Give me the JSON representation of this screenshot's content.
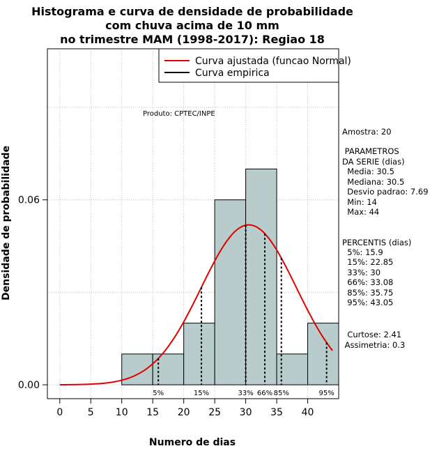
{
  "chart_data": {
    "type": "histogram",
    "title": [
      "Histograma e curva de densidade de probabilidade",
      "com chuva acima de 10 mm",
      "no trimestre MAM (1998-2017): Regiao 18"
    ],
    "xlabel": "Numero de dias",
    "ylabel": "Densidade de probabilidade",
    "xlim": [
      -2,
      45
    ],
    "ylim": [
      -0.0045,
      0.109
    ],
    "x_ticks": [
      0,
      5,
      10,
      15,
      20,
      25,
      30,
      35,
      40
    ],
    "y_ticks": [
      0.0,
      0.06
    ],
    "y_tick_labels": [
      "0.00",
      "0.06"
    ],
    "grid": true,
    "bins": [
      {
        "x0": 10,
        "x1": 15,
        "density": 0.01
      },
      {
        "x0": 15,
        "x1": 20,
        "density": 0.01
      },
      {
        "x0": 20,
        "x1": 25,
        "density": 0.02
      },
      {
        "x0": 25,
        "x1": 30,
        "density": 0.06
      },
      {
        "x0": 30,
        "x1": 35,
        "density": 0.07
      },
      {
        "x0": 35,
        "x1": 40,
        "density": 0.01
      },
      {
        "x0": 40,
        "x1": 45,
        "density": 0.02
      }
    ],
    "fit": {
      "name": "Curva ajustada (funcao Normal)",
      "mean": 30.5,
      "sd": 7.69,
      "x_range": [
        0,
        44
      ],
      "color": "#e00000"
    },
    "empirical": {
      "name": "Curva empirica",
      "color": "#000000"
    },
    "percentile_markers": [
      {
        "label": "5%",
        "x": 15.9
      },
      {
        "label": "15%",
        "x": 22.85
      },
      {
        "label": "33%",
        "x": 30
      },
      {
        "label": "66%",
        "x": 33.08
      },
      {
        "label": "85%",
        "x": 35.75
      },
      {
        "label": "95%",
        "x": 43.05
      }
    ],
    "legend_position": "top-right",
    "bar_color": "#b8cccc"
  },
  "annotations": {
    "produto": "Produto: CPTEC/INPE",
    "stats_lines": [
      "Amostra: 20",
      " PARAMETROS",
      "DA SERIE (dias)",
      "  Media: 30.5",
      "  Mediana: 30.5",
      "  Desvio padrao: 7.69",
      "  Min: 14",
      "  Max: 44",
      "PERCENTIS (dias)",
      "  5%: 15.9",
      "  15%: 22.85",
      "  33%: 30",
      "  66%: 33.08",
      "  85%: 35.75",
      "  95%: 43.05",
      "  Curtose: 2.41",
      " Assimetria: 0.3"
    ]
  }
}
